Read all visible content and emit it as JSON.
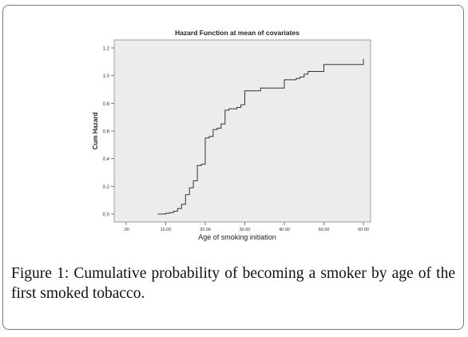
{
  "caption": {
    "label": "Figure 1",
    "text": ": Cumulative probability of becoming a smoker by age of the first smoked tobacco."
  },
  "chart_data": {
    "type": "line",
    "title": "Hazard Function at mean of covariates",
    "xlabel": "Age of smoking initiation",
    "ylabel": "Cum Hazard",
    "xlim": [
      0,
      60
    ],
    "ylim": [
      0,
      1.2
    ],
    "x_ticks": [
      0,
      10,
      20,
      30,
      40,
      50,
      60
    ],
    "x_tick_labels": [
      ".00",
      "10.00",
      "20.00",
      "30.00",
      "40.00",
      "50.00",
      "60.00"
    ],
    "y_ticks": [
      0.0,
      0.2,
      0.4,
      0.6,
      0.8,
      1.0,
      1.2
    ],
    "y_tick_labels": [
      "0.0",
      "0.2",
      "0.4",
      "0.6",
      "0.8",
      "1.0",
      "1.2"
    ],
    "grid": false,
    "plot_background": "#ececec",
    "line_color": "#333333",
    "step": true,
    "series": [
      {
        "x": [
          8,
          10,
          11,
          12,
          13,
          14,
          15,
          16,
          17,
          18,
          19,
          20,
          21,
          22,
          23,
          24,
          25,
          26,
          28,
          29,
          30,
          34,
          40,
          43,
          44,
          45,
          46,
          50,
          60
        ],
        "y": [
          0.0,
          0.005,
          0.01,
          0.02,
          0.04,
          0.07,
          0.14,
          0.19,
          0.24,
          0.35,
          0.36,
          0.55,
          0.56,
          0.61,
          0.62,
          0.65,
          0.75,
          0.76,
          0.77,
          0.79,
          0.89,
          0.91,
          0.97,
          0.98,
          0.99,
          1.01,
          1.03,
          1.08,
          1.12
        ]
      }
    ]
  }
}
